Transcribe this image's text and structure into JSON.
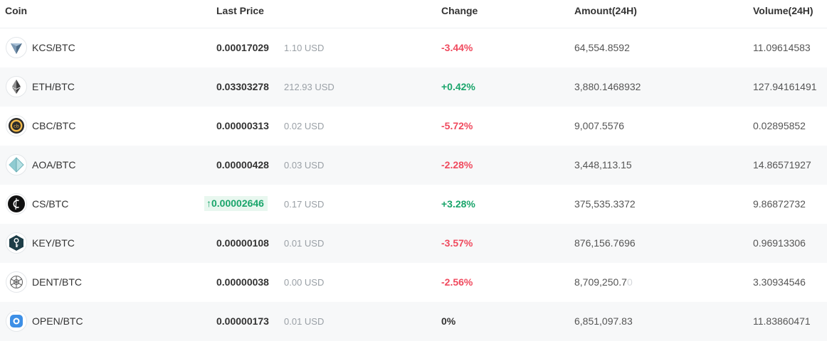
{
  "headers": {
    "coin": "Coin",
    "last_price": "Last Price",
    "change": "Change",
    "amount": "Amount(24H)",
    "volume": "Volume(24H)"
  },
  "colors": {
    "negative": "#f04a5e",
    "positive": "#1aa56b",
    "highlight_bg": "#e8f7ef"
  },
  "rows": [
    {
      "icon": "kcs-icon",
      "pair": "KCS/BTC",
      "price": "0.00017029",
      "usd": "1.10 USD",
      "change": "-3.44%",
      "direction": "neg",
      "amount": "64,554.8592",
      "volume": "11.09614583"
    },
    {
      "icon": "eth-icon",
      "pair": "ETH/BTC",
      "price": "0.03303278",
      "usd": "212.93 USD",
      "change": "+0.42%",
      "direction": "pos",
      "amount": "3,880.1468932",
      "volume": "127.94161491"
    },
    {
      "icon": "cbc-icon",
      "pair": "CBC/BTC",
      "price": "0.00000313",
      "usd": "0.02 USD",
      "change": "-5.72%",
      "direction": "neg",
      "amount": "9,007.5576",
      "volume": "0.02895852"
    },
    {
      "icon": "aoa-icon",
      "pair": "AOA/BTC",
      "price": "0.00000428",
      "usd": "0.03 USD",
      "change": "-2.28%",
      "direction": "neg",
      "amount": "3,448,113.15",
      "volume": "14.86571927"
    },
    {
      "icon": "cs-icon",
      "pair": "CS/BTC",
      "price": "0.00002646",
      "price_arrow": "↑",
      "usd": "0.17 USD",
      "change": "+3.28%",
      "direction": "pos",
      "amount": "375,535.3372",
      "volume": "9.86872732"
    },
    {
      "icon": "key-icon",
      "pair": "KEY/BTC",
      "price": "0.00000108",
      "usd": "0.01 USD",
      "change": "-3.57%",
      "direction": "neg",
      "amount": "876,156.7696",
      "volume": "0.96913306"
    },
    {
      "icon": "dent-icon",
      "pair": "DENT/BTC",
      "price": "0.00000038",
      "usd": "0.00 USD",
      "change": "-2.56%",
      "direction": "neg",
      "amount_main": "8,709,250.7",
      "amount_fade": "0",
      "volume": "3.30934546"
    },
    {
      "icon": "open-icon",
      "pair": "OPEN/BTC",
      "price": "0.00000173",
      "usd": "0.01 USD",
      "change": "0%",
      "direction": "neu",
      "amount": "6,851,097.83",
      "volume": "11.83860471"
    }
  ]
}
